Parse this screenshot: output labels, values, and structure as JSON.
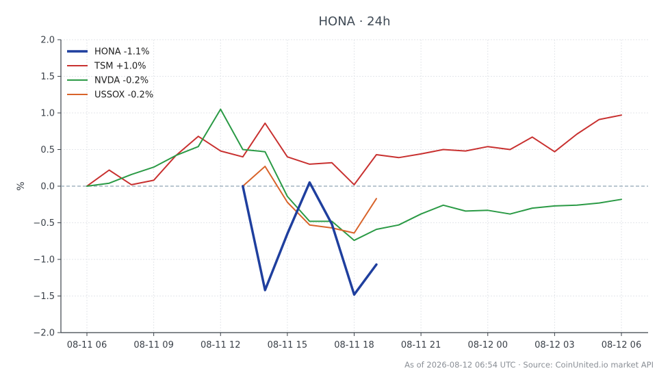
{
  "chart_data": {
    "type": "line",
    "title": "HONA · 24h",
    "xlabel": "",
    "ylabel": "%",
    "ylim": [
      -2.0,
      2.0
    ],
    "yticks": [
      2.0,
      1.5,
      1.0,
      0.5,
      0.0,
      -0.5,
      -1.0,
      -1.5,
      -2.0
    ],
    "ytick_labels": [
      "2.0",
      "1.5",
      "1.0",
      "0.5",
      "0.0",
      "−0.5",
      "−1.0",
      "−1.5",
      "−2.0"
    ],
    "x_start": "2026-08-11 06:00",
    "x_end": "2026-08-12 06:00",
    "x_step_hours": 1,
    "x_ticks": [
      "08-11 06",
      "08-11 09",
      "08-11 12",
      "08-11 15",
      "08-11 18",
      "08-11 21",
      "08-12 00",
      "08-12 03",
      "08-12 06"
    ],
    "grid": true,
    "legend_position": "top-left",
    "series": [
      {
        "name": "HONA -1.1%",
        "color": "#1f3f9e",
        "start": "2026-08-11 13:00",
        "values": [
          0.0,
          -1.42,
          -0.65,
          0.05,
          -0.52,
          -1.48,
          -1.07
        ]
      },
      {
        "name": "TSM +1.0%",
        "color": "#c8302f",
        "start": "2026-08-11 06:00",
        "values": [
          0.0,
          0.22,
          0.02,
          0.08,
          0.42,
          0.68,
          0.48,
          0.4,
          0.86,
          0.4,
          0.3,
          0.32,
          0.02,
          0.43,
          0.39,
          0.44,
          0.5,
          0.48,
          0.54,
          0.5,
          0.67,
          0.47,
          0.71,
          0.91,
          0.97
        ]
      },
      {
        "name": "NVDA -0.2%",
        "color": "#2a9a45",
        "start": "2026-08-11 06:00",
        "values": [
          0.0,
          0.04,
          0.16,
          0.26,
          0.42,
          0.54,
          1.05,
          0.5,
          0.47,
          -0.14,
          -0.48,
          -0.48,
          -0.74,
          -0.59,
          -0.53,
          -0.38,
          -0.26,
          -0.34,
          -0.33,
          -0.38,
          -0.3,
          -0.27,
          -0.26,
          -0.23,
          -0.18
        ]
      },
      {
        "name": "USSOX -0.2%",
        "color": "#d8632a",
        "start": "2026-08-11 13:00",
        "values": [
          0.0,
          0.27,
          -0.22,
          -0.53,
          -0.57,
          -0.64,
          -0.17
        ]
      }
    ],
    "baseline": 0.0,
    "footer": "As of 2026-08-12 06:54 UTC · Source: CoinUnited.io market API"
  }
}
